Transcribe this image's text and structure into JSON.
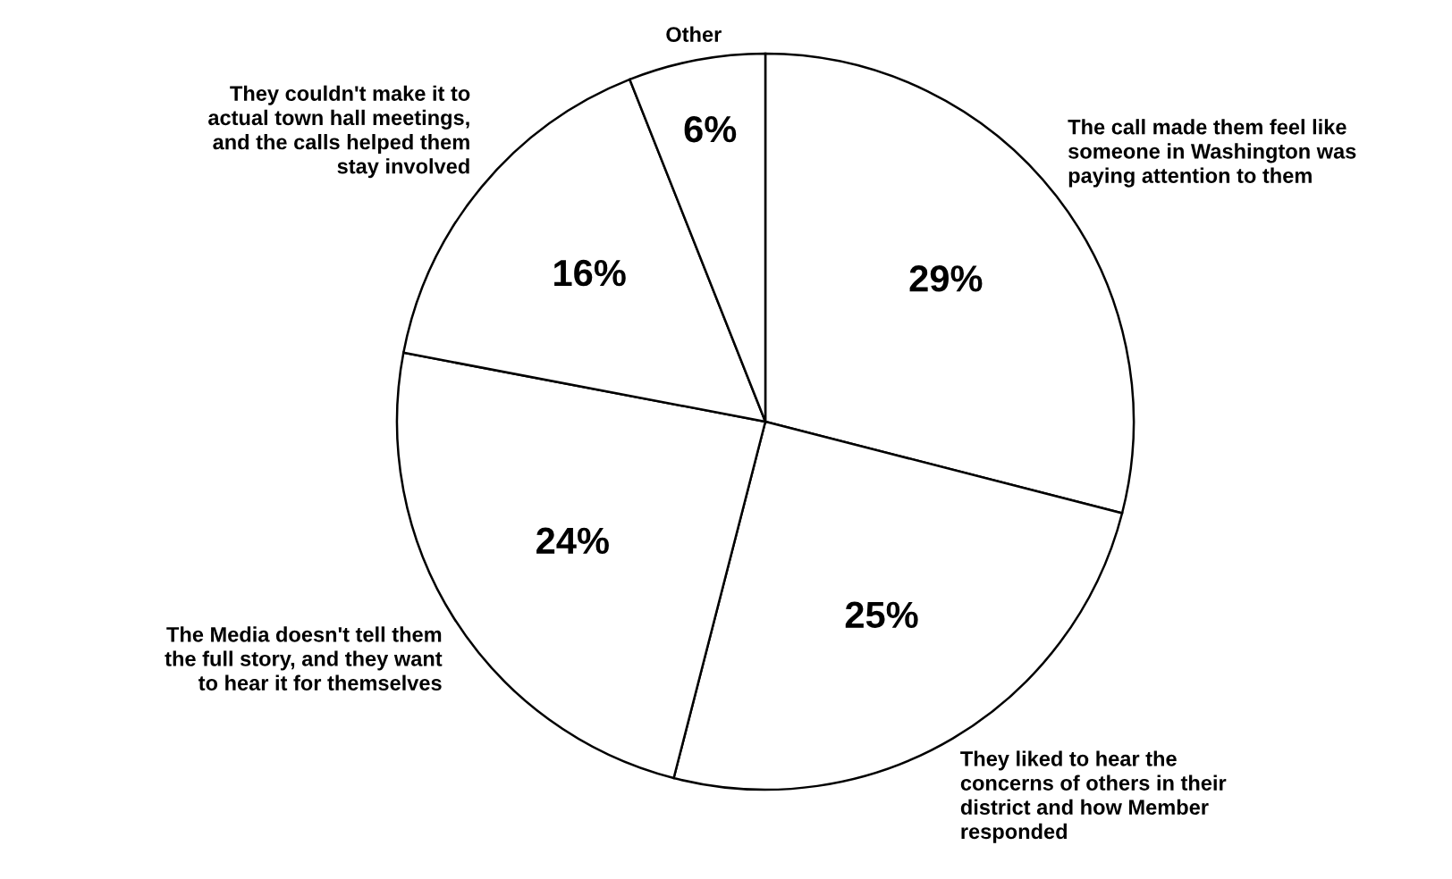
{
  "chart_data": {
    "type": "pie",
    "categories": [
      "The call made them feel like\nsomeone in Washington was\npaying attention to them",
      "They liked to hear the\nconcerns of others in their\ndistrict and how Member\nresponded",
      "The Media doesn't tell them\nthe full story, and they want\nto hear it for themselves",
      "They couldn't make it to\nactual town hall meetings,\nand the calls helped them\nstay involved",
      "Other"
    ],
    "values": [
      29,
      25,
      24,
      16,
      6
    ],
    "value_labels": [
      "29%",
      "25%",
      "24%",
      "16%",
      "6%"
    ],
    "colors": [
      "#ffffff",
      "#ffffff",
      "#ffffff",
      "#ffffff",
      "#ffffff"
    ],
    "legend": false
  }
}
